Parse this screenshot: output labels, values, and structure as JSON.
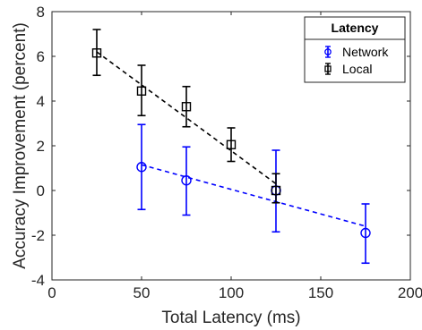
{
  "chart_data": {
    "type": "scatter",
    "xlabel": "Total Latency (ms)",
    "ylabel": "Accuracy Improvement (percent)",
    "xlim": [
      0,
      200
    ],
    "ylim": [
      -4,
      8
    ],
    "xticks": [
      0,
      50,
      100,
      150,
      200
    ],
    "yticks": [
      -4,
      -2,
      0,
      2,
      4,
      6,
      8
    ],
    "grid": false,
    "legend": {
      "title": "Latency",
      "placement": "top-right"
    },
    "series": [
      {
        "name": "Network",
        "color": "#0000ff",
        "marker": "circle",
        "x": [
          50,
          75,
          125,
          175
        ],
        "y": [
          1.05,
          0.45,
          0.0,
          -1.9
        ],
        "err_lower": [
          1.9,
          1.55,
          1.85,
          1.35
        ],
        "err_upper": [
          1.9,
          1.5,
          1.8,
          1.3
        ],
        "fit": {
          "x": [
            50,
            175
          ],
          "y": [
            1.15,
            -1.6
          ]
        }
      },
      {
        "name": "Local",
        "color": "#000000",
        "marker": "square",
        "x": [
          25,
          50,
          75,
          100,
          125
        ],
        "y": [
          6.15,
          4.45,
          3.75,
          2.05,
          0.0
        ],
        "err_lower": [
          1.0,
          1.1,
          0.9,
          0.75,
          0.55
        ],
        "err_upper": [
          1.05,
          1.15,
          0.9,
          0.75,
          0.75
        ],
        "fit": {
          "x": [
            25,
            125
          ],
          "y": [
            6.2,
            0.3
          ]
        }
      }
    ]
  }
}
